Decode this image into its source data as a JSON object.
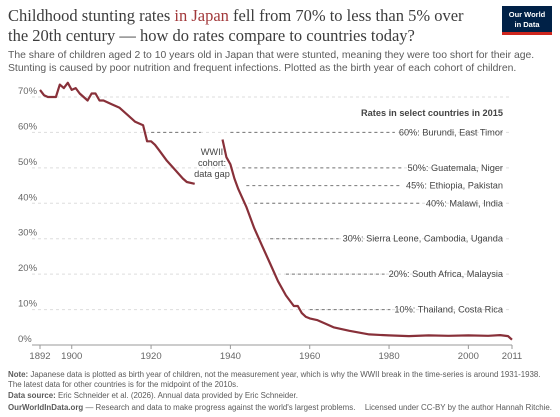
{
  "chart_data": {
    "type": "line",
    "title": [
      "Childhood stunting rates ",
      "in Japan",
      " fell from 70% to less than 5% over",
      "the 20th century — how do rates compare to countries today?"
    ],
    "subtitle": [
      "The share of children aged 2 to 10 years old in Japan that were stunted, meaning they were too short for their age.",
      "Stunting is caused by poor nutrition and frequent infections. Plotted as the birth year of each cohort of children."
    ],
    "x": [
      1892,
      1893,
      1894,
      1896,
      1897,
      1898,
      1899,
      1900,
      1901,
      1902,
      1904,
      1905,
      1906,
      1907,
      1908,
      1910,
      1912,
      1914,
      1916,
      1918,
      1919,
      1920,
      1921,
      1922,
      1924,
      1926,
      1928,
      1929,
      1931,
      1935,
      1938,
      1939,
      1940,
      1941,
      1942,
      1944,
      1946,
      1948,
      1950,
      1952,
      1954,
      1956,
      1957,
      1958,
      1959,
      1960,
      1962,
      1964,
      1966,
      1968,
      1970,
      1975,
      1980,
      1985,
      1990,
      1995,
      2000,
      2005,
      2008,
      2010,
      2011
    ],
    "series": [
      {
        "name": "Japan",
        "color": "#883039",
        "values": [
          72,
          70.5,
          70,
          70,
          73.5,
          72.5,
          74,
          72,
          72.5,
          71,
          69,
          71,
          71,
          69,
          69,
          68,
          67,
          65,
          63,
          62,
          57.5,
          57.5,
          56.5,
          55,
          52,
          49.5,
          47,
          46,
          45.5,
          null,
          58,
          53,
          51,
          47,
          44,
          39,
          33,
          28,
          23,
          18,
          14,
          11,
          11,
          9,
          8,
          7.5,
          7,
          6,
          5,
          4.5,
          4,
          3,
          2.7,
          2.5,
          2.7,
          2.6,
          2.7,
          2.6,
          2.8,
          2.5,
          1.5
        ]
      }
    ],
    "xlim": [
      1892,
      2011
    ],
    "xticks": [
      1892,
      1900,
      1920,
      1940,
      1960,
      1980,
      2000,
      2011
    ],
    "ylim": [
      0,
      70
    ],
    "yticks": [
      {
        "value": 0,
        "label": "0%"
      },
      {
        "value": 10,
        "label": "10%"
      },
      {
        "value": 20,
        "label": "20%"
      },
      {
        "value": 30,
        "label": "30%"
      },
      {
        "value": 40,
        "label": "40%"
      },
      {
        "value": 50,
        "label": "50%"
      },
      {
        "value": 60,
        "label": "60%"
      },
      {
        "value": 70,
        "label": "70%"
      }
    ],
    "grid": true,
    "reference_header": "Rates in select countries in 2015",
    "reference_lines": [
      {
        "value": 60,
        "label": "60%: Burundi, East Timor"
      },
      {
        "value": 50,
        "label": "50%: Guatemala, Niger"
      },
      {
        "value": 45,
        "label": "45%: Ethiopia, Pakistan"
      },
      {
        "value": 40,
        "label": "40%: Malawi, India"
      },
      {
        "value": 30,
        "label": "30%: Sierra Leone, Cambodia, Uganda"
      },
      {
        "value": 20,
        "label": "20%: South Africa, Malaysia"
      },
      {
        "value": 10,
        "label": "10%: Thailand, Costa Rica"
      }
    ],
    "gap_label": [
      "WWII",
      "cohort:",
      "data gap"
    ]
  },
  "logo": [
    "Our World",
    "in Data"
  ],
  "footer": {
    "note_label": "Note:",
    "note": [
      "Japanese data is plotted as birth year of children, not the measurement year, which is why the WWII break in the time-series is around 1931-1938.",
      "The latest data for other countries is for the midpoint of the 2010s."
    ],
    "source_label": "Data source:",
    "source": "Eric Schneider et al. (2026). Annual data provided by Eric Schneider.",
    "site": "OurWorldInData.org",
    "tagline": " — Research and data to make progress against the world's largest problems.",
    "license": "Licensed under CC-BY by the author Hannah Ritchie."
  }
}
